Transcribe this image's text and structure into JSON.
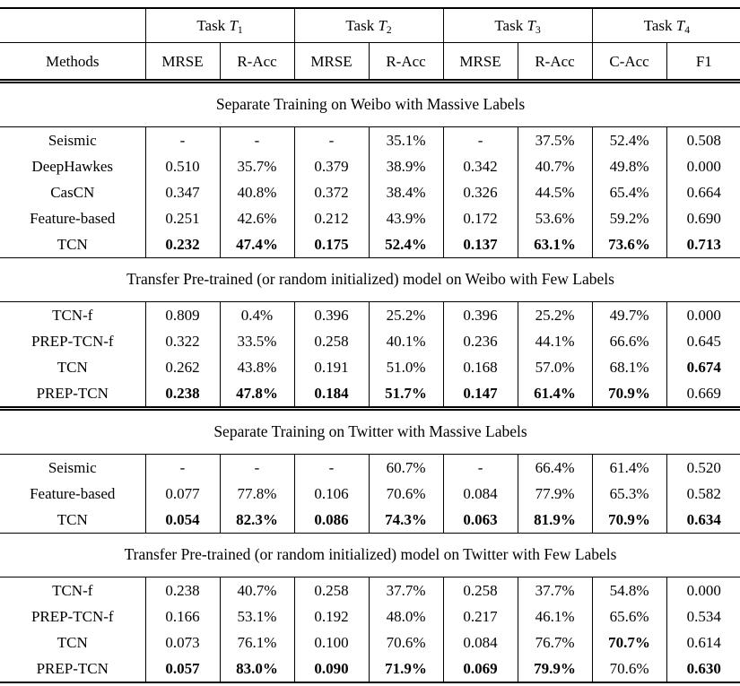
{
  "page": {
    "background_color": "#ffffff",
    "text_color": "#000000"
  },
  "table": {
    "task_groups": [
      {
        "label_prefix": "Task",
        "symbol": "T",
        "subscript": "1"
      },
      {
        "label_prefix": "Task",
        "symbol": "T",
        "subscript": "2"
      },
      {
        "label_prefix": "Task",
        "symbol": "T",
        "subscript": "3"
      },
      {
        "label_prefix": "Task",
        "symbol": "T",
        "subscript": "4"
      }
    ],
    "column_headers": [
      "Methods",
      "MRSE",
      "R-Acc",
      "MRSE",
      "R-Acc",
      "MRSE",
      "R-Acc",
      "C-Acc",
      "F1"
    ],
    "sections": [
      {
        "title": "Separate Training on Weibo with Massive Labels",
        "rows": [
          {
            "method": "Seismic",
            "values": [
              "-",
              "-",
              "-",
              "35.1%",
              "-",
              "37.5%",
              "52.4%",
              "0.508"
            ],
            "bold": [
              0,
              0,
              0,
              0,
              0,
              0,
              0,
              0
            ]
          },
          {
            "method": "DeepHawkes",
            "values": [
              "0.510",
              "35.7%",
              "0.379",
              "38.9%",
              "0.342",
              "40.7%",
              "49.8%",
              "0.000"
            ],
            "bold": [
              0,
              0,
              0,
              0,
              0,
              0,
              0,
              0
            ]
          },
          {
            "method": "CasCN",
            "values": [
              "0.347",
              "40.8%",
              "0.372",
              "38.4%",
              "0.326",
              "44.5%",
              "65.4%",
              "0.664"
            ],
            "bold": [
              0,
              0,
              0,
              0,
              0,
              0,
              0,
              0
            ]
          },
          {
            "method": "Feature-based",
            "values": [
              "0.251",
              "42.6%",
              "0.212",
              "43.9%",
              "0.172",
              "53.6%",
              "59.2%",
              "0.690"
            ],
            "bold": [
              0,
              0,
              0,
              0,
              0,
              0,
              0,
              0
            ]
          },
          {
            "method": "TCN",
            "values": [
              "0.232",
              "47.4%",
              "0.175",
              "52.4%",
              "0.137",
              "63.1%",
              "73.6%",
              "0.713"
            ],
            "bold": [
              1,
              1,
              1,
              1,
              1,
              1,
              1,
              1
            ]
          }
        ]
      },
      {
        "title": "Transfer Pre-trained (or random initialized) model on Weibo with Few Labels",
        "rows": [
          {
            "method": "TCN-f",
            "values": [
              "0.809",
              "0.4%",
              "0.396",
              "25.2%",
              "0.396",
              "25.2%",
              "49.7%",
              "0.000"
            ],
            "bold": [
              0,
              0,
              0,
              0,
              0,
              0,
              0,
              0
            ]
          },
          {
            "method": "PREP-TCN-f",
            "values": [
              "0.322",
              "33.5%",
              "0.258",
              "40.1%",
              "0.236",
              "44.1%",
              "66.6%",
              "0.645"
            ],
            "bold": [
              0,
              0,
              0,
              0,
              0,
              0,
              0,
              0
            ]
          },
          {
            "method": "TCN",
            "values": [
              "0.262",
              "43.8%",
              "0.191",
              "51.0%",
              "0.168",
              "57.0%",
              "68.1%",
              "0.674"
            ],
            "bold": [
              0,
              0,
              0,
              0,
              0,
              0,
              0,
              1
            ]
          },
          {
            "method": "PREP-TCN",
            "values": [
              "0.238",
              "47.8%",
              "0.184",
              "51.7%",
              "0.147",
              "61.4%",
              "70.9%",
              "0.669"
            ],
            "bold": [
              1,
              1,
              1,
              1,
              1,
              1,
              1,
              0
            ]
          }
        ]
      },
      {
        "title": "Separate Training on Twitter with Massive Labels",
        "rows": [
          {
            "method": "Seismic",
            "values": [
              "-",
              "-",
              "-",
              "60.7%",
              "-",
              "66.4%",
              "61.4%",
              "0.520"
            ],
            "bold": [
              0,
              0,
              0,
              0,
              0,
              0,
              0,
              0
            ]
          },
          {
            "method": "Feature-based",
            "values": [
              "0.077",
              "77.8%",
              "0.106",
              "70.6%",
              "0.084",
              "77.9%",
              "65.3%",
              "0.582"
            ],
            "bold": [
              0,
              0,
              0,
              0,
              0,
              0,
              0,
              0
            ]
          },
          {
            "method": "TCN",
            "values": [
              "0.054",
              "82.3%",
              "0.086",
              "74.3%",
              "0.063",
              "81.9%",
              "70.9%",
              "0.634"
            ],
            "bold": [
              1,
              1,
              1,
              1,
              1,
              1,
              1,
              1
            ]
          }
        ]
      },
      {
        "title": "Transfer Pre-trained (or random initialized) model on Twitter with Few Labels",
        "rows": [
          {
            "method": "TCN-f",
            "values": [
              "0.238",
              "40.7%",
              "0.258",
              "37.7%",
              "0.258",
              "37.7%",
              "54.8%",
              "0.000"
            ],
            "bold": [
              0,
              0,
              0,
              0,
              0,
              0,
              0,
              0
            ]
          },
          {
            "method": "PREP-TCN-f",
            "values": [
              "0.166",
              "53.1%",
              "0.192",
              "48.0%",
              "0.217",
              "46.1%",
              "65.6%",
              "0.534"
            ],
            "bold": [
              0,
              0,
              0,
              0,
              0,
              0,
              0,
              0
            ]
          },
          {
            "method": "TCN",
            "values": [
              "0.073",
              "76.1%",
              "0.100",
              "70.6%",
              "0.084",
              "76.7%",
              "70.7%",
              "0.614"
            ],
            "bold": [
              0,
              0,
              0,
              0,
              0,
              0,
              1,
              0
            ]
          },
          {
            "method": "PREP-TCN",
            "values": [
              "0.057",
              "83.0%",
              "0.090",
              "71.9%",
              "0.069",
              "79.9%",
              "70.6%",
              "0.630"
            ],
            "bold": [
              1,
              1,
              1,
              1,
              1,
              1,
              0,
              1
            ]
          }
        ]
      }
    ]
  }
}
